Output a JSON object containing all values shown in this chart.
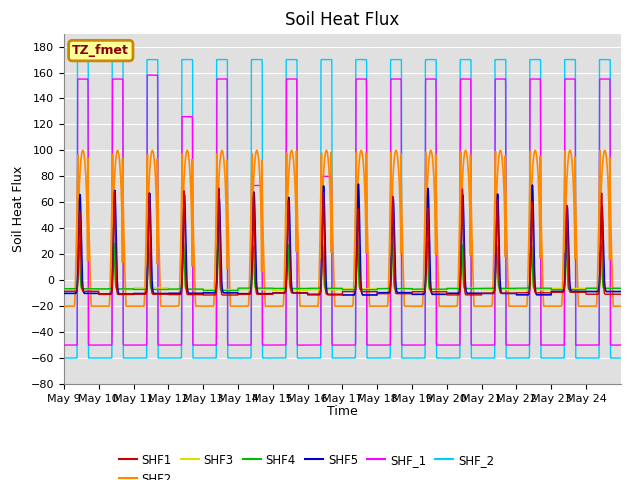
{
  "title": "Soil Heat Flux",
  "ylabel": "Soil Heat Flux",
  "xlabel": "Time",
  "ylim": [
    -80,
    190
  ],
  "yticks": [
    -80,
    -60,
    -40,
    -20,
    0,
    20,
    40,
    60,
    80,
    100,
    120,
    140,
    160,
    180
  ],
  "xstart_day": 9,
  "num_days": 16,
  "series_colors": {
    "SHF1": "#cc0000",
    "SHF2": "#ff8800",
    "SHF3": "#dddd00",
    "SHF4": "#00bb00",
    "SHF5": "#0000cc",
    "SHF_1": "#ff00ff",
    "SHF_2": "#00ccff"
  },
  "annotation_text": "TZ_fmet",
  "annotation_bg": "#ffff99",
  "annotation_border": "#cc8800",
  "bg_color": "#e0e0e0",
  "grid_color": "#ffffff",
  "title_fontsize": 12,
  "axis_label_fontsize": 9,
  "tick_fontsize": 8
}
